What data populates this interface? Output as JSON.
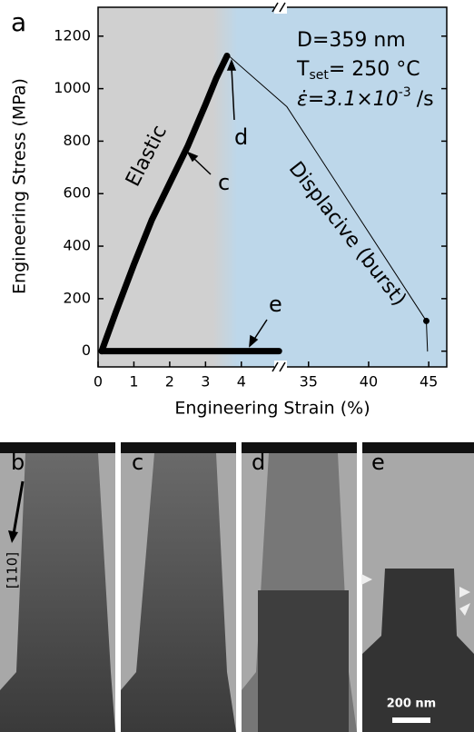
{
  "panel_label": "a",
  "chart_data": {
    "type": "line",
    "xlabel": "Engineering Strain (%)",
    "ylabel": "Engineering Stress (MPa)",
    "xlim": [
      [
        0,
        5.07
      ],
      [
        32.6,
        46.5
      ]
    ],
    "xticks": [
      0,
      1,
      2,
      3,
      4,
      35,
      40,
      45
    ],
    "ylim": [
      -60,
      1310
    ],
    "yticks": [
      0,
      200,
      400,
      600,
      800,
      1000,
      1200
    ],
    "series": [
      {
        "style": "thick",
        "color": "#000000",
        "x": [
          0.1,
          0.5,
          1,
          1.5,
          2,
          2.5,
          3,
          3.3,
          3.6
        ],
        "values": [
          0,
          150,
          330,
          500,
          640,
          780,
          940,
          1040,
          1125
        ]
      },
      {
        "style": "thin",
        "color": "#000000",
        "x": [
          3.65,
          33.2,
          44.8,
          44.9
        ],
        "values": [
          1125,
          931,
          115,
          0
        ]
      },
      {
        "style": "dot",
        "color": "#000000",
        "x": [
          44.8
        ],
        "values": [
          115
        ]
      },
      {
        "style": "thick",
        "color": "#000000",
        "x": [
          0.1,
          5.05
        ],
        "values": [
          0,
          0
        ]
      }
    ],
    "annotations": [
      "Elastic",
      "c",
      "d",
      "Displacive (burst)",
      "e"
    ],
    "conditions": {
      "diameter": "D=359 nm",
      "temp_symbol": "T",
      "temp_sub": "set",
      "temp_value": "= 250 °C",
      "rate_symbol": "ε̇=3.1×10",
      "rate_exp": "-3",
      "rate_unit": "/s"
    }
  },
  "images": {
    "labels": [
      "b",
      "c",
      "d",
      "e"
    ],
    "direction": "[110]",
    "scale_bar": "200 nm"
  }
}
